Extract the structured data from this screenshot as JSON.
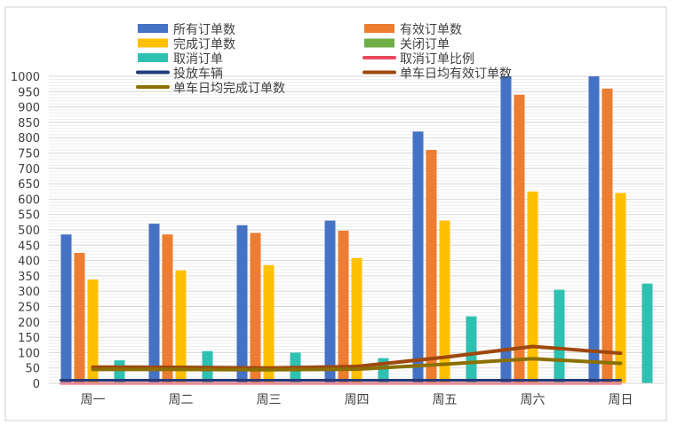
{
  "chart_data": {
    "type": "bar",
    "categories": [
      "周一",
      "周二",
      "周三",
      "周四",
      "周五",
      "周六",
      "周日"
    ],
    "ylim": [
      0,
      1000
    ],
    "yticks": [
      0,
      50,
      100,
      150,
      200,
      250,
      300,
      350,
      400,
      450,
      500,
      550,
      600,
      650,
      700,
      750,
      800,
      850,
      900,
      950,
      1000
    ],
    "legend_position": "top",
    "grid": true,
    "bar_series": [
      {
        "name": "所有订单数",
        "color": "#4472C4",
        "values": [
          485,
          520,
          515,
          530,
          820,
          1000,
          1000
        ]
      },
      {
        "name": "有效订单数",
        "color": "#ED7D31",
        "values": [
          425,
          485,
          490,
          497,
          760,
          940,
          960
        ]
      },
      {
        "name": "完成订单数",
        "color": "#FFC000",
        "values": [
          338,
          368,
          385,
          408,
          530,
          625,
          620
        ]
      },
      {
        "name": "关闭订单",
        "color": "#70AD47",
        "values": [
          0,
          0,
          0,
          0,
          0,
          0,
          0
        ]
      },
      {
        "name": "取消订单",
        "color": "#2EC1B2",
        "values": [
          75,
          105,
          100,
          82,
          218,
          305,
          325
        ]
      }
    ],
    "line_series": [
      {
        "name": "取消订单比例",
        "color": "#E84A5F",
        "values": [
          0,
          0,
          0,
          0,
          0,
          0,
          0
        ]
      },
      {
        "name": "投放车辆",
        "color": "#223C7A",
        "values": [
          10,
          10,
          10,
          10,
          10,
          10,
          10
        ]
      },
      {
        "name": "单车日均有效订单数",
        "color": "#9E480E",
        "values": [
          53,
          52,
          50,
          55,
          85,
          120,
          98
        ]
      },
      {
        "name": "单车日均完成订单数",
        "color": "#8B7000",
        "values": [
          45,
          45,
          44,
          46,
          62,
          80,
          65
        ]
      }
    ]
  }
}
